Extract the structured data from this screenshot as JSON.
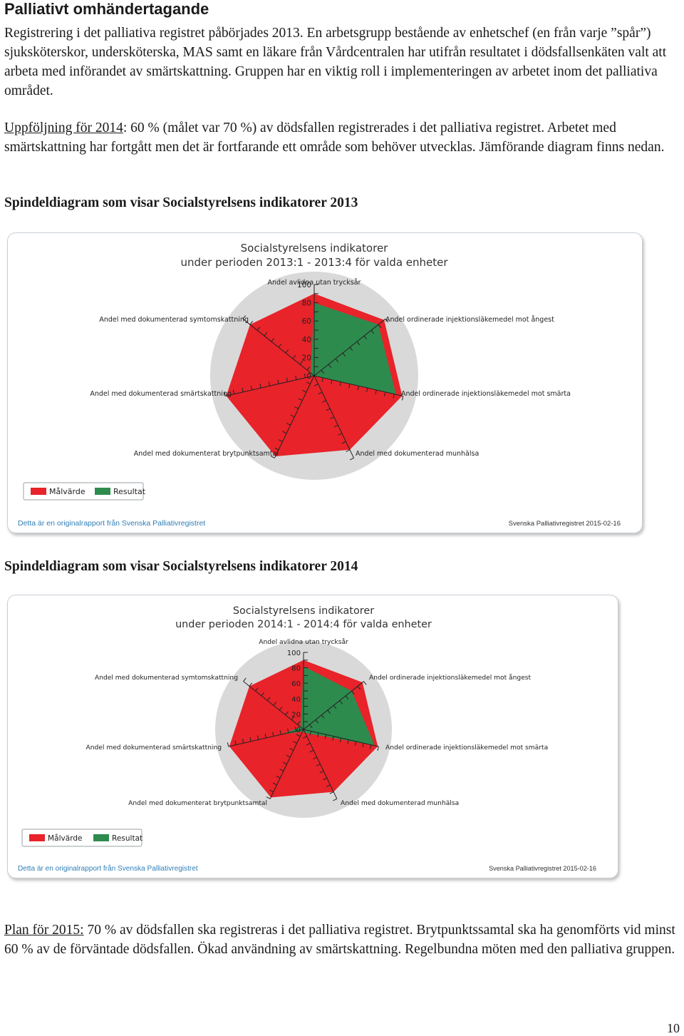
{
  "heading": "Palliativt omhändertagande",
  "intro": "Registrering i det palliativa registret påbörjades 2013. En arbetsgrupp bestående av enhetschef (en från varje ”spår”) sjuksköterskor, undersköterska, MAS samt en läkare från Vårdcentralen har utifrån resultatet i dödsfallsenkäten valt att arbeta med införandet av smärtskattning. Gruppen har en viktig roll i implementeringen av arbetet  inom det palliativa området.",
  "followup": {
    "label": "Uppföljning för 2014",
    "text": ": 60 % (målet var 70 %) av dödsfallen registrerades i det palliativa registret. Arbetet med smärtskattning har fortgått men det är fortfarande ett område som behöver utvecklas. Jämförande diagram finns nedan."
  },
  "section1_title": "Spindeldiagram som visar Socialstyrelsens indikatorer 2013",
  "section2_title": "Spindeldiagram som visar Socialstyrelsens indikatorer 2014",
  "plan": {
    "label": "Plan för 2015:",
    "text": " 70 % av dödsfallen ska registreras i det palliativa registret. Brytpunktssamtal ska ha genomförts vid minst 60 % av de förväntade dödsfallen. Ökad användning av smärtskattning. Regelbundna möten med den palliativa gruppen."
  },
  "page_number": "10",
  "colors": {
    "target": "#e8232a",
    "result": "#2e8b4e",
    "background": "#d9d9d9"
  },
  "chart_data": [
    {
      "type": "radar",
      "title": "Socialstyrelsens indikatorer",
      "subtitle": "under perioden 2013:1 - 2013:4 för valda enheter",
      "axes": [
        "Andel avlidna utan trycksår",
        "Andel ordinerade injektionsläkemedel mot ångest",
        "Andel ordinerade injektionsläkemedel mot smärta",
        "Andel med dokumenterad munhälsa",
        "Andel med dokumenterat brytpunktsamtal",
        "Andel med dokumenterad smärtskattning",
        "Andel med dokumenterad symtomskattning"
      ],
      "ticks": [
        "0",
        "20",
        "40",
        "60",
        "80",
        "100"
      ],
      "range": [
        0,
        100
      ],
      "series": [
        {
          "name": "Målvärde",
          "values": [
            90,
            98,
            99,
            90,
            98,
            99,
            90
          ]
        },
        {
          "name": "Resultat",
          "values": [
            80,
            90,
            92,
            0,
            0,
            4,
            5
          ]
        }
      ],
      "footer_left": "Detta är en originalrapport från Svenska Palliativregistret",
      "footer_right": "Svenska Palliativregistret 2015-02-16"
    },
    {
      "type": "radar",
      "title": "Socialstyrelsens indikatorer",
      "subtitle": "under perioden 2014:1 - 2014:4 för valda enheter",
      "axes": [
        "Andel avlidna utan trycksår",
        "Andel ordinerade injektionsläkemedel mot ångest",
        "Andel ordinerade injektionsläkemedel mot smärta",
        "Andel med dokumenterad munhälsa",
        "Andel med dokumenterat brytpunktsamtal",
        "Andel med dokumenterad smärtskattning",
        "Andel med dokumenterad symtomskattning"
      ],
      "ticks": [
        "0",
        "20",
        "40",
        "60",
        "80",
        "100"
      ],
      "range": [
        0,
        100
      ],
      "series": [
        {
          "name": "Målvärde",
          "values": [
            90,
            98,
            99,
            90,
            98,
            99,
            90
          ]
        },
        {
          "name": "Resultat",
          "values": [
            82,
            80,
            95,
            5,
            3,
            30,
            5
          ]
        }
      ],
      "footer_left": "Detta är en originalrapport från Svenska Palliativregistret",
      "footer_right": "Svenska Palliativregistret 2015-02-16"
    }
  ]
}
